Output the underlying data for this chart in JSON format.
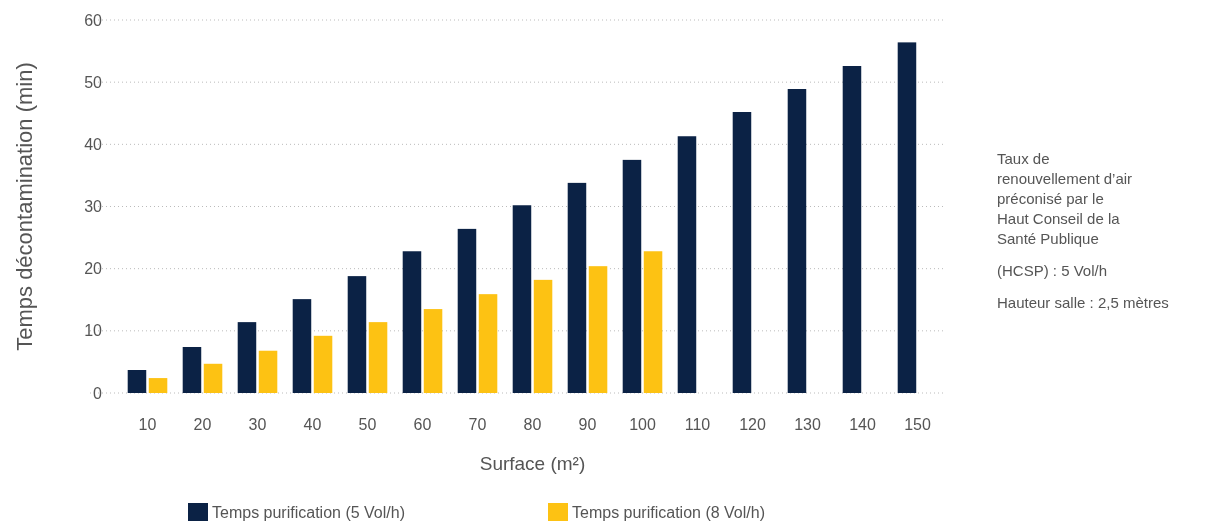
{
  "chart_data": {
    "type": "bar",
    "xlabel": "Surface (m²)",
    "ylabel": "Temps décontamination (min)",
    "categories": [
      "10",
      "20",
      "30",
      "40",
      "50",
      "60",
      "70",
      "80",
      "90",
      "100",
      "110",
      "120",
      "130",
      "140",
      "150"
    ],
    "series": [
      {
        "name": "Temps purification (5 Vol/h)",
        "color": "#0b2245",
        "values": [
          3.7,
          7.4,
          11.4,
          15.1,
          18.8,
          22.8,
          26.4,
          30.2,
          33.8,
          37.5,
          41.3,
          45.2,
          48.9,
          52.6,
          56.4
        ]
      },
      {
        "name": "Temps purification (8 Vol/h)",
        "color": "#fdc213",
        "values": [
          2.4,
          4.7,
          6.8,
          9.2,
          11.4,
          13.5,
          15.9,
          18.2,
          20.4,
          22.8,
          null,
          null,
          null,
          null,
          null
        ]
      }
    ],
    "ylim": [
      0,
      60
    ],
    "yticks": [
      0,
      10,
      20,
      30,
      40,
      50,
      60
    ],
    "grid": "y",
    "legend": "bottom",
    "annotations": [
      "Taux de renouvellement d’air préconisé par le Haut Conseil de la Santé Publique",
      "(HCSP) : 5 Vol/h",
      "Hauteur salle : 2,5 mètres"
    ]
  }
}
